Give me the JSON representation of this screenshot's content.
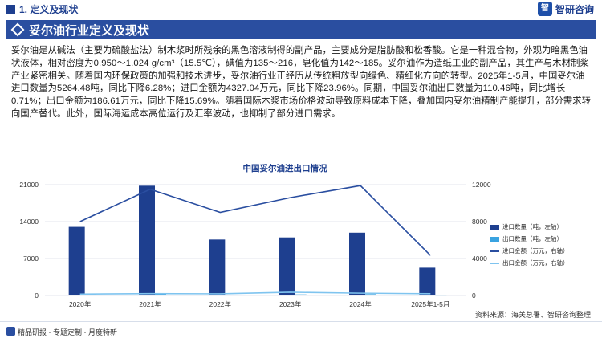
{
  "header": {
    "section": "1. 定义及现状",
    "brand": "智研咨询",
    "logo_glyph": "智"
  },
  "title": "妥尔油行业定义及现状",
  "paragraph": "妥尔油是从碱法（主要为硫酸盐法）制木浆时所残余的黑色溶液制得的副产品，主要成分是脂肪酸和松香酸。它是一种混合物，外观为暗黑色油状液体，相对密度为0.950～1.024 g/cm³（15.5℃），碘值为135～216，皂化值为142～185。妥尔油作为造纸工业的副产品，其生产与木材制浆产业紧密相关。随着国内环保政策的加强和技术进步，妥尔油行业正经历从传统粗放型向绿色、精细化方向的转型。2025年1-5月，中国妥尔油进口数量为5264.48吨，同比下降6.28%；进口金额为4327.04万元，同比下降23.96%。同期，中国妥尔油出口数量为110.46吨，同比增长0.71%；出口金额为186.61万元，同比下降15.69%。随着国际木浆市场价格波动导致原料成本下降，叠加国内妥尔油精制产能提升，部分需求转向国产替代。此外，国际海运成本高位运行及汇率波动，也抑制了部分进口需求。",
  "chart_data": {
    "type": "bar",
    "title": "中国妥尔油进出口情况",
    "categories": [
      "2020年",
      "2021年",
      "2022年",
      "2023年",
      "2024年",
      "2025年1-5月"
    ],
    "left_axis": {
      "ticks": [
        "0",
        "7000",
        "14000",
        "21000"
      ],
      "range": [
        0,
        21000
      ]
    },
    "right_axis": {
      "ticks": [
        "0",
        "4000",
        "8000",
        "12000"
      ],
      "range": [
        0,
        12000
      ]
    },
    "series": [
      {
        "name": "进口数量（吨，左轴）",
        "kind": "bar",
        "axis": "left",
        "color": "#1e3f8f",
        "values": [
          13000,
          20800,
          10600,
          11000,
          11900,
          5264.48
        ]
      },
      {
        "name": "出口数量（吨，左轴）",
        "kind": "bar",
        "axis": "left",
        "color": "#3aa3e0",
        "values": [
          200,
          250,
          150,
          200,
          250,
          110.46
        ]
      },
      {
        "name": "进口金额（万元，右轴）",
        "kind": "line",
        "axis": "right",
        "color": "#2a4ea0",
        "values": [
          8000,
          11500,
          9000,
          10600,
          11900,
          4327.04
        ]
      },
      {
        "name": "出口金额（万元，右轴）",
        "kind": "line",
        "axis": "right",
        "color": "#7fc4ef",
        "values": [
          150,
          200,
          180,
          350,
          250,
          186.61
        ]
      }
    ]
  },
  "source": "资料来源：海关总署、智研咨询整理",
  "footer": "精品研报 · 专题定制 · 月度特新"
}
